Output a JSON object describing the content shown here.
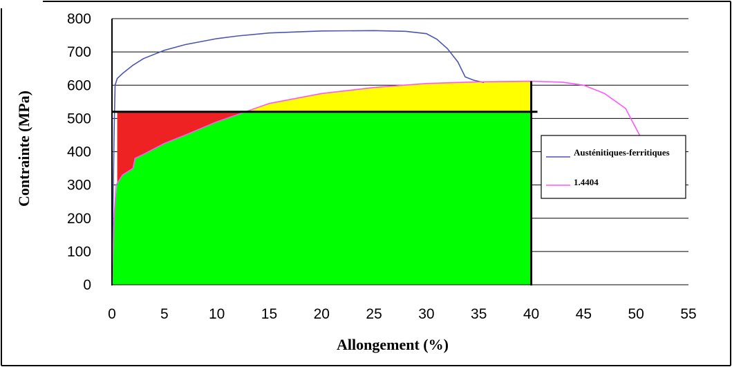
{
  "chart_data": {
    "type": "line",
    "xlabel": "Allongement (%)",
    "ylabel": "Contrainte (MPa)",
    "xlim": [
      0,
      55
    ],
    "ylim": [
      0,
      800
    ],
    "x_ticks": [
      0,
      5,
      10,
      15,
      20,
      25,
      30,
      35,
      40,
      45,
      50,
      55
    ],
    "y_ticks": [
      0,
      100,
      200,
      300,
      400,
      500,
      600,
      700,
      800
    ],
    "grid": "horizontal",
    "legend_position": "right",
    "series": [
      {
        "name": "Austénitiques-ferritiques",
        "color": "#4a55b0",
        "points": [
          [
            0,
            0
          ],
          [
            0.2,
            450
          ],
          [
            0.3,
            600
          ],
          [
            0.5,
            620
          ],
          [
            1,
            635
          ],
          [
            2,
            660
          ],
          [
            3,
            680
          ],
          [
            5,
            705
          ],
          [
            7,
            722
          ],
          [
            10,
            740
          ],
          [
            12,
            748
          ],
          [
            15,
            757
          ],
          [
            20,
            763
          ],
          [
            25,
            764
          ],
          [
            28,
            762
          ],
          [
            30,
            755
          ],
          [
            31,
            738
          ],
          [
            32,
            710
          ],
          [
            33,
            670
          ],
          [
            33.7,
            625
          ],
          [
            34.5,
            615
          ],
          [
            35.5,
            608
          ]
        ]
      },
      {
        "name": "1.4404",
        "color": "#ff55ff",
        "points": [
          [
            0,
            0
          ],
          [
            0.2,
            200
          ],
          [
            0.4,
            300
          ],
          [
            1,
            330
          ],
          [
            2,
            350
          ],
          [
            2.2,
            380
          ],
          [
            3,
            392
          ],
          [
            5,
            425
          ],
          [
            7,
            450
          ],
          [
            10,
            490
          ],
          [
            12,
            512
          ],
          [
            15,
            545
          ],
          [
            20,
            575
          ],
          [
            25,
            593
          ],
          [
            30,
            605
          ],
          [
            35,
            610
          ],
          [
            40,
            612
          ],
          [
            43,
            609
          ],
          [
            45,
            600
          ],
          [
            47,
            575
          ],
          [
            49,
            530
          ],
          [
            50.5,
            440
          ]
        ]
      }
    ],
    "annotations": {
      "reference_stress": 520,
      "reference_strain": 40,
      "region_colors": {
        "green": "#00ff00",
        "yellow": "#ffff00",
        "red": "#ee2222"
      }
    }
  }
}
